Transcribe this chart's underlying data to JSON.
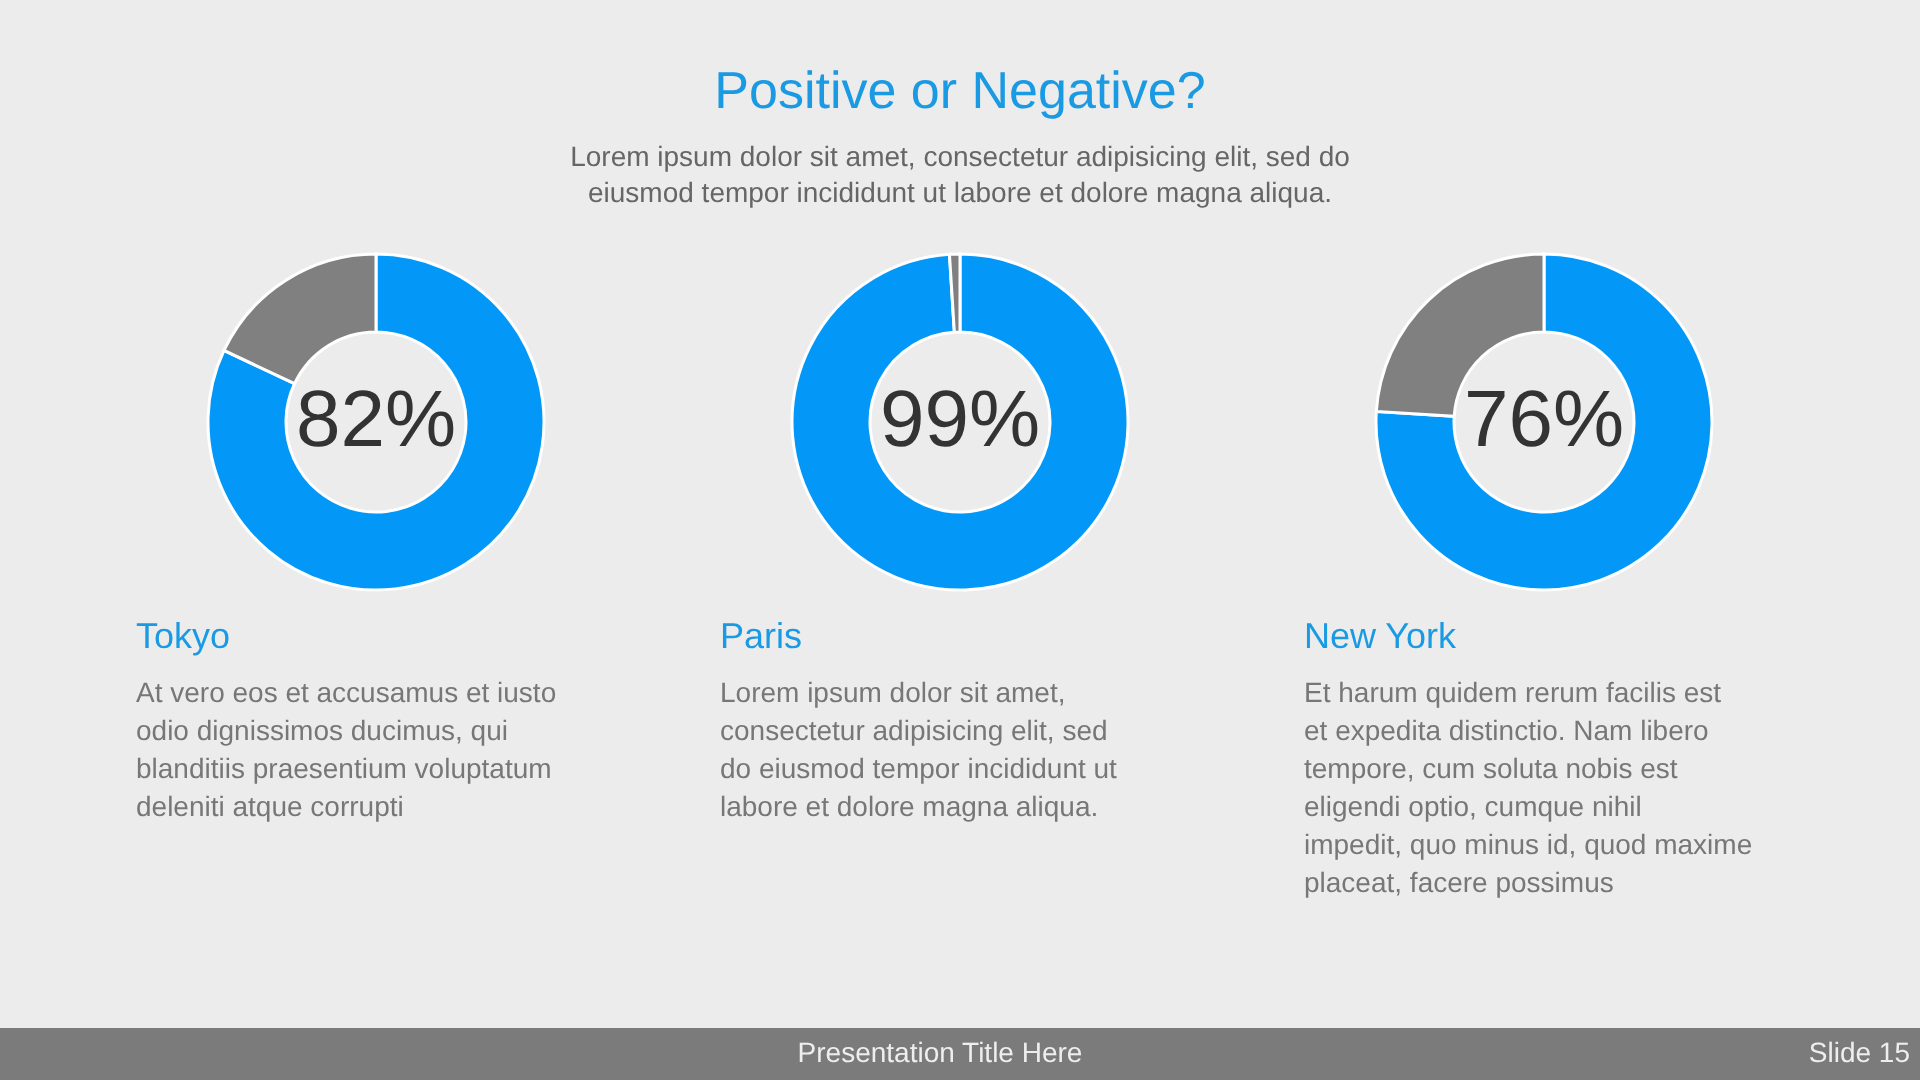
{
  "chart_data": [
    {
      "type": "other",
      "title": "Positive or Negative?",
      "subtitle": "Lorem ipsum dolor sit amet, consectetur adipisicing elit, sed do eiusmod tempor incididunt ut labore et dolore magna aliqua."
    },
    {
      "type": "donut",
      "title": "Tokyo",
      "categories": [
        null,
        null
      ],
      "values": [
        82,
        18
      ],
      "colors": [
        "#0398f7",
        "#808080"
      ],
      "value_labels": [
        "82%",
        null
      ],
      "annotations": [
        "At vero eos et accusamus et iusto odio dignissimos ducimus, qui blanditiis praesentium voluptatum deleniti atque corrupti"
      ]
    },
    {
      "type": "donut",
      "title": "Paris",
      "categories": [
        null,
        null
      ],
      "values": [
        99,
        1
      ],
      "colors": [
        "#0398f7",
        "#808080"
      ],
      "value_labels": [
        "99%",
        null
      ],
      "annotations": [
        "Lorem ipsum dolor sit amet, consectetur adipisicing elit, sed do eiusmod tempor incididunt ut labore et dolore magna aliqua."
      ]
    },
    {
      "type": "donut",
      "title": "New York",
      "categories": [
        null,
        null
      ],
      "values": [
        76,
        24
      ],
      "colors": [
        "#0398f7",
        "#808080"
      ],
      "value_labels": [
        "76%",
        null
      ],
      "annotations": [
        "Et harum quidem rerum facilis est et expedita distinctio. Nam libero tempore, cum soluta nobis est eligendi optio, cumque nihil impedit, quo minus id, quod maxime placeat, facere possimus"
      ]
    },
    {
      "type": "other",
      "annotations": [
        "Presentation Title Here",
        "Slide 15"
      ]
    }
  ]
}
